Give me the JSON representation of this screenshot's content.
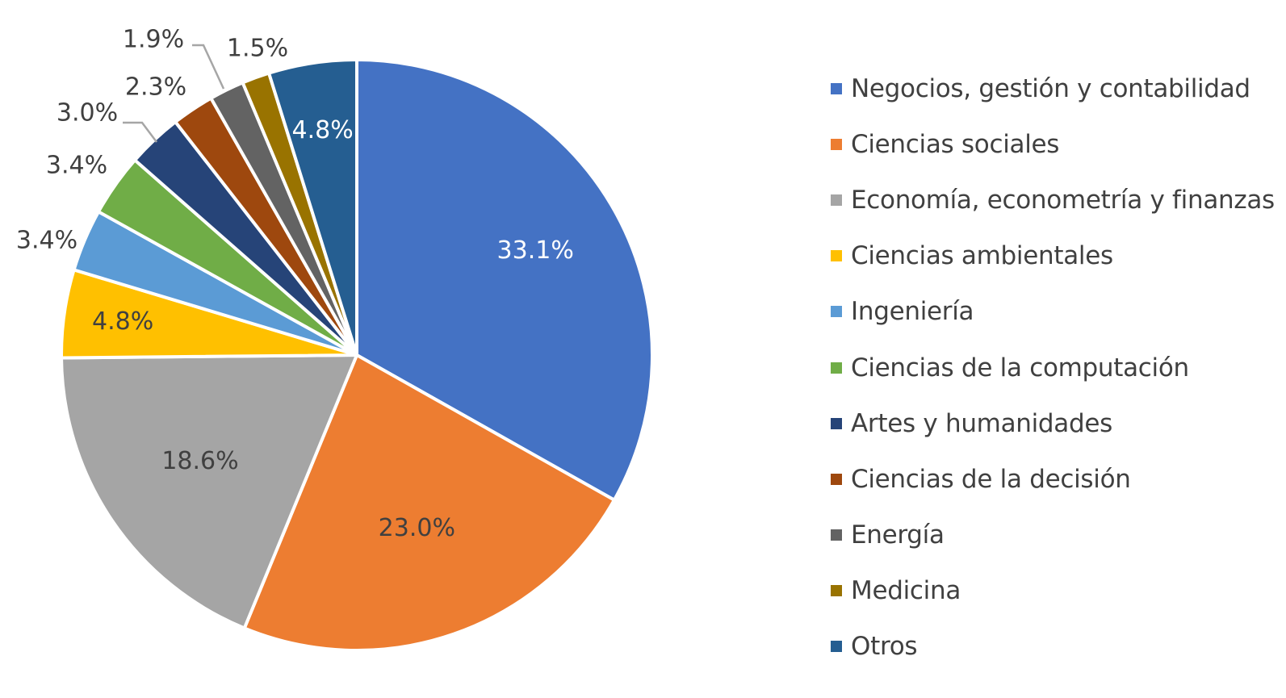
{
  "chart_data": {
    "type": "pie",
    "title": "",
    "legend_position": "right",
    "label_format": "percent_one_decimal",
    "slices": [
      {
        "name": "Negocios, gestión y contabilidad",
        "value": 33.1,
        "label": "33.1%",
        "color": "#4472C4",
        "label_color": "#FFFFFF"
      },
      {
        "name": "Ciencias sociales",
        "value": 23.0,
        "label": "23.0%",
        "color": "#ED7D31",
        "label_color": "#404040"
      },
      {
        "name": "Economía, econometría y finanzas",
        "value": 18.6,
        "label": "18.6%",
        "color": "#A5A5A5",
        "label_color": "#404040"
      },
      {
        "name": "Ciencias ambientales",
        "value": 4.8,
        "label": "4.8%",
        "color": "#FFC000",
        "label_color": "#404040"
      },
      {
        "name": "Ingeniería",
        "value": 3.4,
        "label": "3.4%",
        "color": "#5B9BD5",
        "label_color": "#404040"
      },
      {
        "name": "Ciencias de la computación",
        "value": 3.4,
        "label": "3.4%",
        "color": "#70AD47",
        "label_color": "#404040"
      },
      {
        "name": "Artes y humanidades",
        "value": 3.0,
        "label": "3.0%",
        "color": "#264478",
        "label_color": "#404040"
      },
      {
        "name": "Ciencias de la decisión",
        "value": 2.3,
        "label": "2.3%",
        "color": "#9E480E",
        "label_color": "#404040"
      },
      {
        "name": "Energía",
        "value": 1.9,
        "label": "1.9%",
        "color": "#636363",
        "label_color": "#404040"
      },
      {
        "name": "Medicina",
        "value": 1.5,
        "label": "1.5%",
        "color": "#997300",
        "label_color": "#404040"
      },
      {
        "name": "Otros",
        "value": 4.8,
        "label": "4.8%",
        "color": "#255E91",
        "label_color": "#FFFFFF"
      }
    ]
  }
}
